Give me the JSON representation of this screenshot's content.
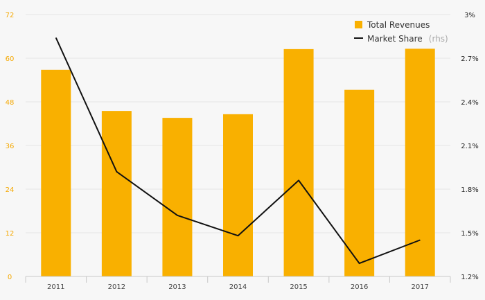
{
  "chart_data": {
    "type": "bar",
    "categories": [
      "2011",
      "2012",
      "2013",
      "2014",
      "2015",
      "2016",
      "2017"
    ],
    "series": [
      {
        "name": "Total Revenues",
        "type": "bar",
        "axis": "left",
        "color": "#F9B000",
        "values": [
          56.8,
          45.5,
          43.6,
          44.6,
          62.5,
          51.3,
          62.6
        ]
      },
      {
        "name": "Market Share",
        "name_suffix": "(rhs)",
        "type": "line",
        "axis": "right",
        "color": "#111111",
        "values": [
          2.84,
          1.92,
          1.62,
          1.48,
          1.86,
          1.29,
          1.45
        ]
      }
    ],
    "y_left": {
      "ylim": [
        0,
        72
      ],
      "ticks": [
        "0",
        "12",
        "24",
        "36",
        "48",
        "60",
        "72"
      ]
    },
    "y_right": {
      "ylim": [
        1.2,
        3.0
      ],
      "ticks": [
        "1.2%",
        "1.5%",
        "1.8%",
        "2.1%",
        "2.4%",
        "2.7%",
        "3%"
      ]
    },
    "grid": true,
    "legend": "top-right",
    "title": "",
    "xlabel": "",
    "ylabel": ""
  }
}
